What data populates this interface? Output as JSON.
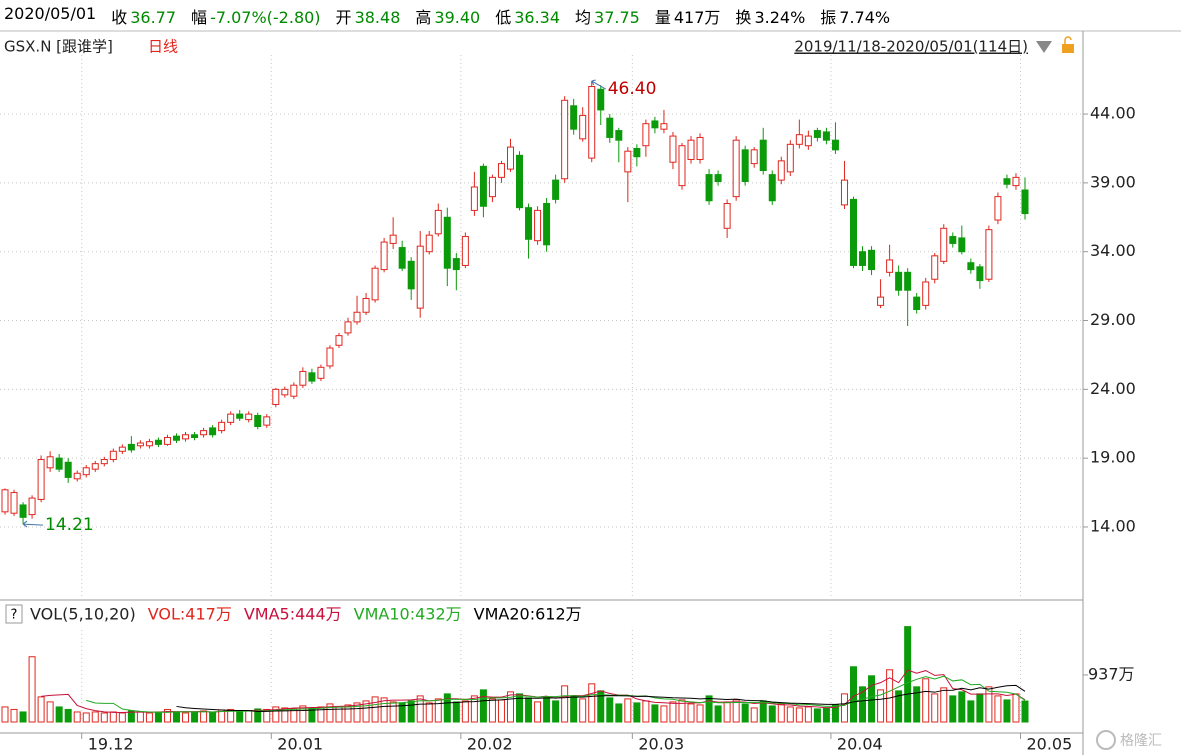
{
  "header": {
    "date": "2020/05/01",
    "fields": [
      {
        "label": "收",
        "value": "36.77",
        "color": "#008a00"
      },
      {
        "label": "幅",
        "value": "-7.07%(-2.80)",
        "color": "#008a00"
      },
      {
        "label": "开",
        "value": "38.48",
        "color": "#008a00"
      },
      {
        "label": "高",
        "value": "39.40",
        "color": "#008a00"
      },
      {
        "label": "低",
        "value": "36.34",
        "color": "#008a00"
      },
      {
        "label": "均",
        "value": "37.75",
        "color": "#008a00"
      },
      {
        "label": "量",
        "value": "417万",
        "color": "#000000"
      },
      {
        "label": "换",
        "value": "3.24%",
        "color": "#000000"
      },
      {
        "label": "振",
        "value": "7.74%",
        "color": "#000000"
      }
    ]
  },
  "symbol": "GSX.N [跟谁学]",
  "period": "日线",
  "range": "2019/11/18-2020/05/01(114日)",
  "help": "?",
  "watermark": "格隆汇",
  "chart_data": [
    {
      "type": "candlestick",
      "up_color": "#e0261d",
      "down_color": "#0a9a0a",
      "grid": true,
      "ylim": [
        8.84,
        48.29
      ],
      "yticks": [
        {
          "value": 44,
          "label": "44.00"
        },
        {
          "value": 39,
          "label": "39.00"
        },
        {
          "value": 34,
          "label": "34.00"
        },
        {
          "value": 29,
          "label": "29.00"
        },
        {
          "value": 24,
          "label": "24.00"
        },
        {
          "value": 19,
          "label": "19.00"
        },
        {
          "value": 14,
          "label": "14.00"
        }
      ],
      "xticks": [
        {
          "value": 8.5,
          "label": "19.12"
        },
        {
          "value": 29.5,
          "label": "20.01"
        },
        {
          "value": 50.5,
          "label": "20.02"
        },
        {
          "value": 69.5,
          "label": "20.03"
        },
        {
          "value": 91.5,
          "label": "20.04"
        },
        {
          "value": 112.5,
          "label": "20.05"
        }
      ],
      "high_label": "46.40",
      "low_label": "14.21",
      "open": [
        15.1,
        15.0,
        15.6,
        14.9,
        16.0,
        18.3,
        19.0,
        18.7,
        17.5,
        17.8,
        18.2,
        18.6,
        18.9,
        19.5,
        20.0,
        19.9,
        19.9,
        20.3,
        20.0,
        20.6,
        20.4,
        20.7,
        20.7,
        21.2,
        21.0,
        21.6,
        22.2,
        21.8,
        22.1,
        21.4,
        22.9,
        23.6,
        23.5,
        24.3,
        25.2,
        24.8,
        25.7,
        27.2,
        28.1,
        28.9,
        29.6,
        30.5,
        32.7,
        34.6,
        34.3,
        33.3,
        29.9,
        34.0,
        35.3,
        36.5,
        33.5,
        33.0,
        37.0,
        40.2,
        38.0,
        39.4,
        40.0,
        41.0,
        37.2,
        34.8,
        37.5,
        39.2,
        39.3,
        44.6,
        42.2,
        40.8,
        45.8,
        43.7,
        42.8,
        39.8,
        41.5,
        41.7,
        43.5,
        42.9,
        40.5,
        38.8,
        40.7,
        40.7,
        39.6,
        39.6,
        35.7,
        38.0,
        41.4,
        40.4,
        42.1,
        39.6,
        39.2,
        39.8,
        41.8,
        41.7,
        42.8,
        42.7,
        42.1,
        37.4,
        37.8,
        34.0,
        34.1,
        30.1,
        32.5,
        32.5,
        32.5,
        30.7,
        30.1,
        32.0,
        33.3,
        35.1,
        35.0,
        33.2,
        32.9,
        32.0,
        36.3,
        39.3,
        38.8,
        38.48
      ],
      "high": [
        16.8,
        16.7,
        15.8,
        16.3,
        19.2,
        19.5,
        19.3,
        19.0,
        18.1,
        18.5,
        18.8,
        19.1,
        19.7,
        20.0,
        20.6,
        20.3,
        20.4,
        20.5,
        20.7,
        20.8,
        20.9,
        20.9,
        21.2,
        21.4,
        21.8,
        22.4,
        22.5,
        22.4,
        22.3,
        22.2,
        24.1,
        24.2,
        24.5,
        25.6,
        25.5,
        25.8,
        27.2,
        28.1,
        29.2,
        30.8,
        31.0,
        33.0,
        35.0,
        36.5,
        34.8,
        33.6,
        35.5,
        35.5,
        37.5,
        37.2,
        33.9,
        35.4,
        39.8,
        40.4,
        39.6,
        40.6,
        42.2,
        41.3,
        37.5,
        37.3,
        37.9,
        39.6,
        45.3,
        45.1,
        44.5,
        46.4,
        46.1,
        44.0,
        43.0,
        41.6,
        41.8,
        43.6,
        43.8,
        44.3,
        42.7,
        41.9,
        42.4,
        42.6,
        40.0,
        39.9,
        37.8,
        42.4,
        41.7,
        41.6,
        43.0,
        39.9,
        40.9,
        42.1,
        43.6,
        42.8,
        43.0,
        43.0,
        43.4,
        40.6,
        38.0,
        34.4,
        34.4,
        32.0,
        34.5,
        33.0,
        32.8,
        31.0,
        32.1,
        33.9,
        36.0,
        35.4,
        35.9,
        33.5,
        33.1,
        35.9,
        38.3,
        39.6,
        39.7,
        39.4
      ],
      "low": [
        14.9,
        14.8,
        14.21,
        14.6,
        15.8,
        18.0,
        18.0,
        17.2,
        17.3,
        17.6,
        18.0,
        18.4,
        18.7,
        19.3,
        19.4,
        19.7,
        19.7,
        19.8,
        19.9,
        20.1,
        20.2,
        20.3,
        20.5,
        20.5,
        20.8,
        21.4,
        21.7,
        21.6,
        21.1,
        21.2,
        22.7,
        23.4,
        23.3,
        24.1,
        24.4,
        24.6,
        25.5,
        27.0,
        27.9,
        28.7,
        29.4,
        30.3,
        32.5,
        34.2,
        32.6,
        30.5,
        29.2,
        33.8,
        35.1,
        31.5,
        31.2,
        32.8,
        36.6,
        36.5,
        37.6,
        39.0,
        39.8,
        37.0,
        33.5,
        34.5,
        34.0,
        37.5,
        39.0,
        42.5,
        42.0,
        40.5,
        43.2,
        41.9,
        40.5,
        37.6,
        40.2,
        40.9,
        42.6,
        42.6,
        40.0,
        38.5,
        40.4,
        40.4,
        37.4,
        38.8,
        35.0,
        37.7,
        38.8,
        40.1,
        39.6,
        37.4,
        38.9,
        39.5,
        41.5,
        41.4,
        42.0,
        41.8,
        41.1,
        37.1,
        32.8,
        32.6,
        32.3,
        29.9,
        32.2,
        30.8,
        28.6,
        29.5,
        29.8,
        31.7,
        33.1,
        34.3,
        33.8,
        32.4,
        31.3,
        31.8,
        36.0,
        38.6,
        38.5,
        36.34
      ],
      "close": [
        16.7,
        16.5,
        14.7,
        16.1,
        18.9,
        19.1,
        18.2,
        17.6,
        17.9,
        18.3,
        18.6,
        18.9,
        19.5,
        19.8,
        19.6,
        20.1,
        20.2,
        20.0,
        20.5,
        20.3,
        20.7,
        20.5,
        21.0,
        20.7,
        21.6,
        22.2,
        21.9,
        22.2,
        21.3,
        22.0,
        24.0,
        24.0,
        24.3,
        25.3,
        24.6,
        25.6,
        27.0,
        27.9,
        28.9,
        29.6,
        30.6,
        32.8,
        34.7,
        35.2,
        32.8,
        31.3,
        34.4,
        35.2,
        37.0,
        32.8,
        32.7,
        35.1,
        38.7,
        37.3,
        39.4,
        40.4,
        41.6,
        37.2,
        34.9,
        37.0,
        34.5,
        37.8,
        45.0,
        42.9,
        43.9,
        46.0,
        44.3,
        42.3,
        42.1,
        41.3,
        40.9,
        43.3,
        43.0,
        43.3,
        42.4,
        41.7,
        42.1,
        42.3,
        37.7,
        39.1,
        37.5,
        42.1,
        39.1,
        41.4,
        39.9,
        37.7,
        40.6,
        41.8,
        42.5,
        42.4,
        42.3,
        42.1,
        41.4,
        39.2,
        33.0,
        33.0,
        32.7,
        30.7,
        33.4,
        31.2,
        31.2,
        29.8,
        31.8,
        33.7,
        35.7,
        34.6,
        34.0,
        32.7,
        31.9,
        35.6,
        38.0,
        38.9,
        39.4,
        36.77
      ]
    },
    {
      "type": "bar",
      "title": "VOL(5,10,20)",
      "name": "VOL:417万",
      "color": "#e0261d",
      "ylim": [
        0,
        2430
      ],
      "yticks": [
        {
          "value": 937,
          "label": "937万"
        }
      ],
      "values": [
        300,
        250,
        200,
        1300,
        500,
        400,
        300,
        250,
        200,
        180,
        200,
        180,
        200,
        180,
        220,
        200,
        180,
        200,
        250,
        200,
        180,
        200,
        220,
        200,
        240,
        250,
        200,
        220,
        260,
        250,
        300,
        280,
        260,
        320,
        280,
        300,
        360,
        300,
        340,
        380,
        420,
        500,
        480,
        400,
        380,
        420,
        520,
        380,
        460,
        560,
        400,
        420,
        520,
        640,
        460,
        440,
        600,
        560,
        480,
        400,
        500,
        420,
        720,
        520,
        460,
        760,
        620,
        480,
        360,
        460,
        380,
        420,
        340,
        320,
        400,
        440,
        360,
        340,
        520,
        320,
        400,
        440,
        360,
        280,
        420,
        320,
        360,
        300,
        280,
        300,
        260,
        280,
        340,
        560,
        1100,
        700,
        920,
        640,
        1040,
        620,
        1900,
        700,
        860,
        560,
        680,
        520,
        600,
        420,
        560,
        700,
        520,
        440,
        560,
        417
      ],
      "series": [
        {
          "name": "VMA5:444万",
          "color": "#c8103c",
          "values": [
            null,
            null,
            null,
            null,
            510,
            530,
            540,
            550,
            330,
            266,
            226,
            202,
            192,
            188,
            196,
            196,
            196,
            196,
            210,
            206,
            206,
            206,
            210,
            200,
            208,
            222,
            222,
            226,
            234,
            236,
            246,
            262,
            278,
            282,
            288,
            288,
            304,
            312,
            316,
            336,
            360,
            388,
            424,
            436,
            436,
            440,
            460,
            420,
            432,
            464,
            464,
            448,
            472,
            508,
            496,
            496,
            540,
            540,
            520,
            496,
            516,
            472,
            504,
            528,
            524,
            568,
            620,
            568,
            536,
            536,
            460,
            420,
            392,
            384,
            372,
            372,
            380,
            380,
            420,
            396,
            396,
            404,
            396,
            368,
            384,
            364,
            340,
            340,
            316,
            312,
            300,
            284,
            292,
            348,
            512,
            596,
            728,
            784,
            880,
            784,
            1036,
            972,
            1024,
            928,
            944,
            664,
            644,
            556,
            556,
            560,
            560,
            528,
            556,
            444
          ]
        },
        {
          "name": "VMA10:432万",
          "color": "#22aa22",
          "values": [
            null,
            null,
            null,
            null,
            null,
            null,
            null,
            null,
            null,
            430,
            378,
            370,
            371,
            259,
            231,
            211,
            199,
            194,
            192,
            201,
            201,
            201,
            203,
            198,
            209,
            214,
            214,
            216,
            222,
            222,
            234,
            242,
            252,
            258,
            262,
            274,
            290,
            297,
            299,
            312,
            324,
            346,
            368,
            376,
            386,
            400,
            424,
            422,
            434,
            450,
            450,
            454,
            446,
            470,
            480,
            480,
            494,
            524,
            514,
            496,
            506,
            506,
            522,
            524,
            510,
            542,
            546,
            536,
            532,
            530,
            514,
            520,
            480,
            460,
            454,
            416,
            400,
            386,
            402,
            384,
            384,
            392,
            388,
            394,
            390,
            380,
            372,
            368,
            342,
            348,
            332,
            312,
            316,
            332,
            414,
            448,
            506,
            538,
            614,
            698,
            782,
            850,
            904,
            856,
            912,
            818,
            840,
            742,
            750,
            612,
            602,
            592,
            556,
            432
          ]
        },
        {
          "name": "VMA20:612万",
          "color": "#000000",
          "values": [
            null,
            null,
            null,
            null,
            null,
            null,
            null,
            null,
            null,
            null,
            null,
            null,
            null,
            null,
            null,
            null,
            null,
            null,
            null,
            310,
            285,
            270,
            258,
            248,
            240,
            232,
            230,
            228,
            208,
            212,
            218,
            222,
            226,
            228,
            236,
            244,
            252,
            256,
            260,
            267,
            279,
            294,
            310,
            317,
            324,
            337,
            357,
            359,
            366,
            382,
            388,
            400,
            407,
            423,
            433,
            440,
            459,
            473,
            474,
            473,
            478,
            480,
            484,
            497,
            495,
            511,
            520,
            525,
            523,
            521,
            510,
            513,
            501,
            492,
            482,
            479,
            473,
            461,
            467,
            457,
            449,
            456,
            434,
            427,
            422,
            398,
            386,
            377,
            372,
            366,
            358,
            352,
            352,
            363,
            402,
            422,
            439,
            453,
            478,
            523,
            557,
            581,
            610,
            594,
            631,
            633,
            673,
            640,
            682,
            655,
            692,
            721,
            730,
            612
          ]
        }
      ]
    }
  ]
}
